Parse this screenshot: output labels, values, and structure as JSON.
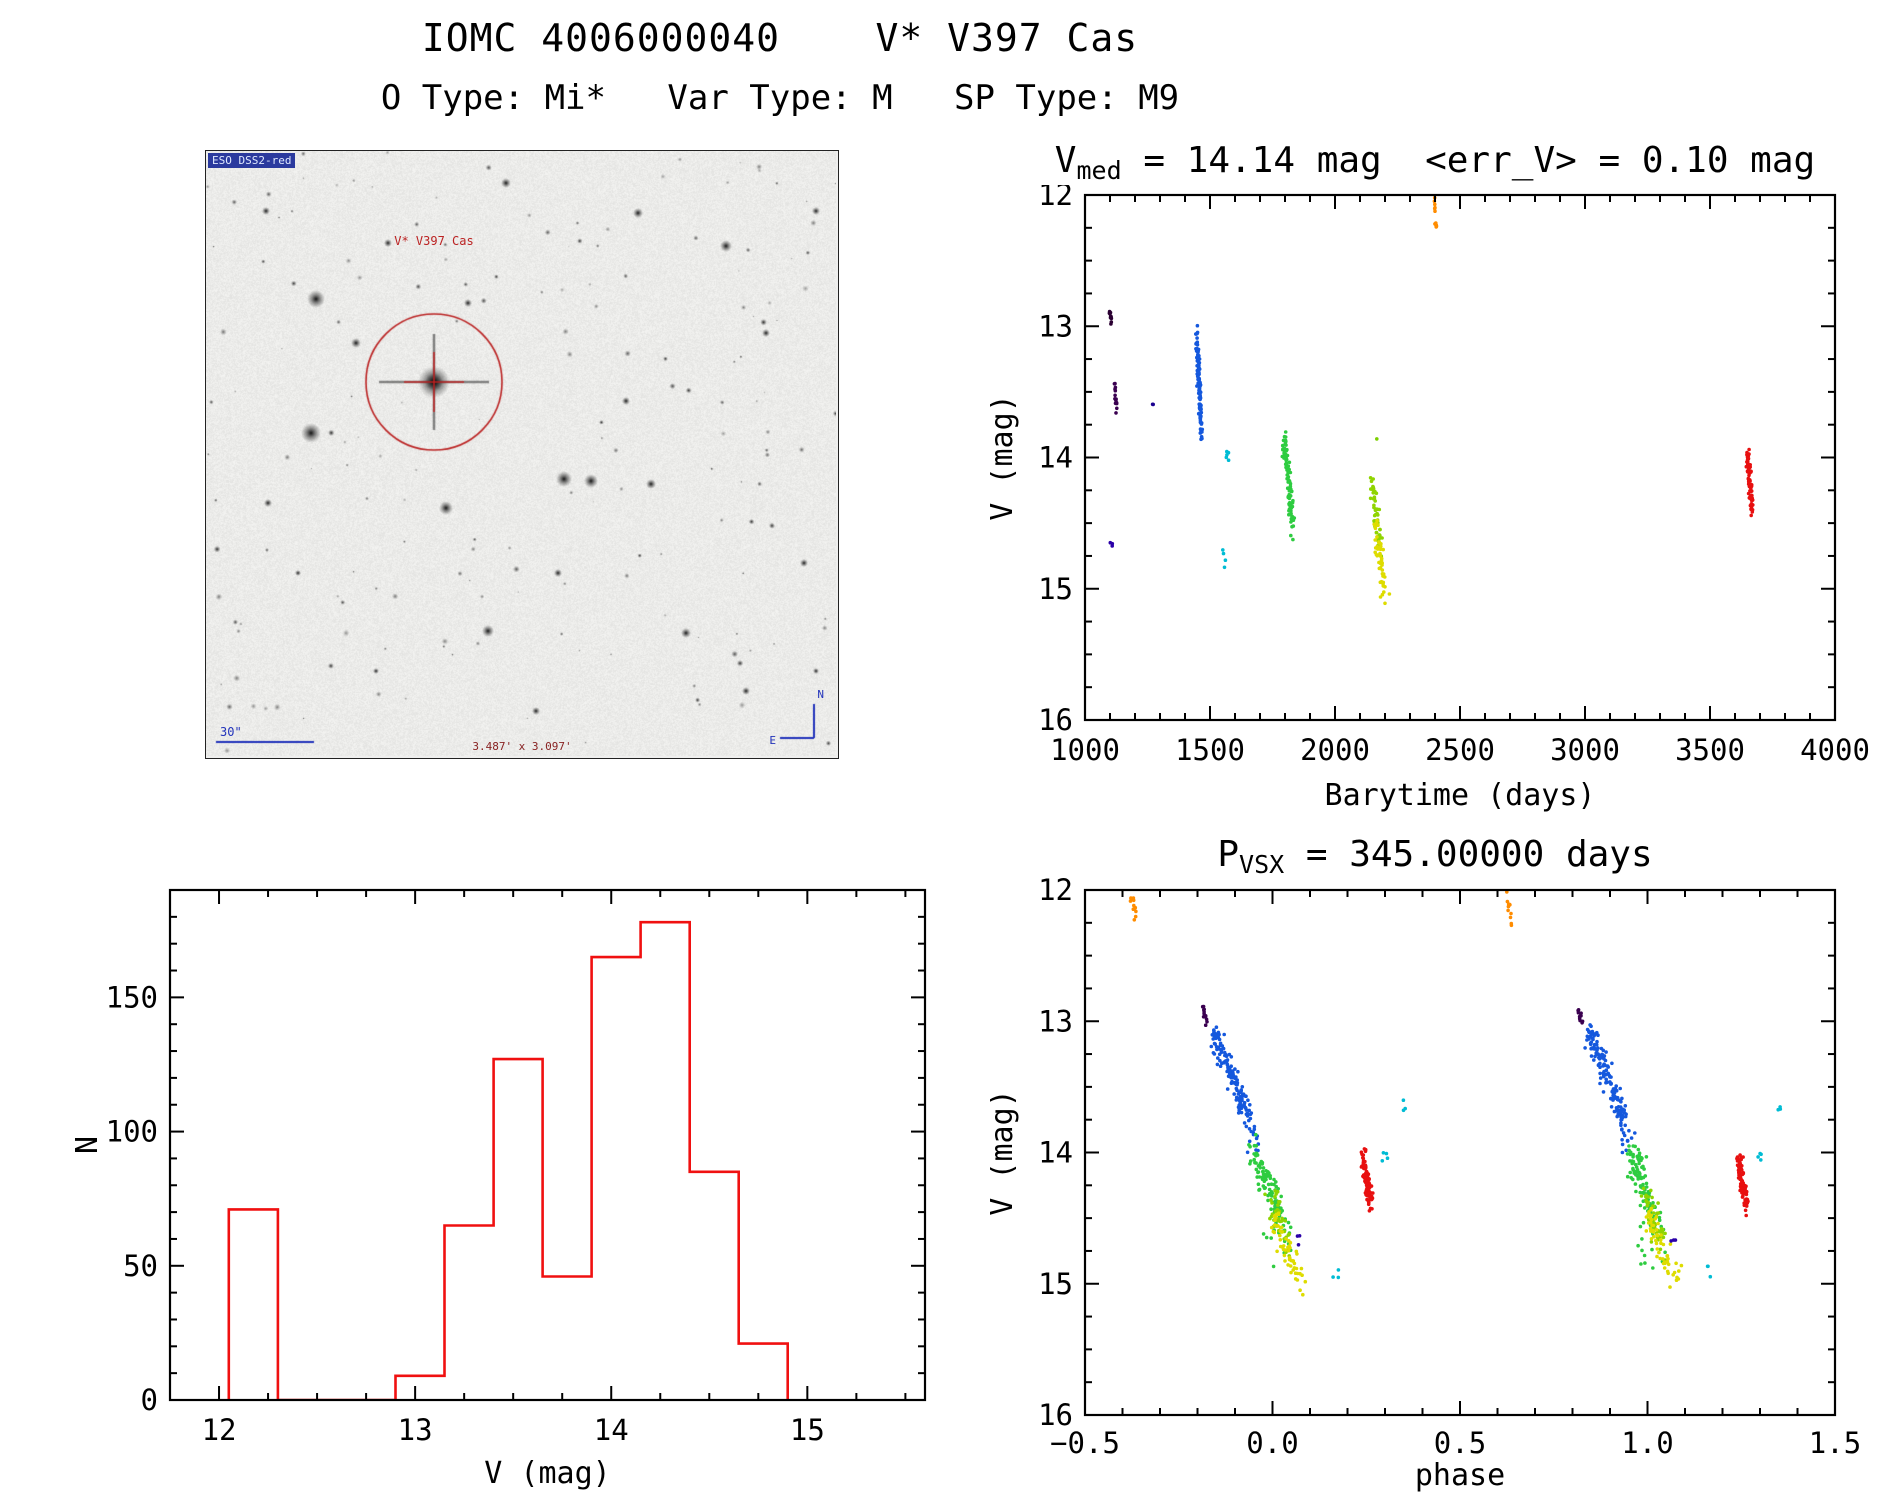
{
  "header": {
    "title": "IOMC 4006000040    V* V397 Cas",
    "subtitle": "O Type: Mi*   Var Type: M   SP Type: M9"
  },
  "finding_chart": {
    "survey_label": "ESO DSS2-red",
    "target_label": "V* V397 Cas",
    "scale_label": "30\"",
    "fov_label": "3.487' x 3.097'",
    "compass_north": "N",
    "compass_east": "E",
    "circle_color": "#bb2222"
  },
  "chart_data": [
    {
      "id": "lightcurve",
      "type": "scatter",
      "title_parts": [
        {
          "t": "V"
        },
        {
          "t": "med",
          "sub": true
        },
        {
          "t": " = 14.14 mag  <err_V> = 0.10 mag"
        }
      ],
      "xlabel": "Barytime (days)",
      "ylabel": "V (mag)",
      "xrange": [
        1000,
        4000
      ],
      "yrange": [
        12,
        16
      ],
      "y_inverted": true,
      "xtick_values": [
        1000,
        1500,
        2000,
        2500,
        3000,
        3500,
        4000
      ],
      "xtick_labels": [
        "1000",
        "1500",
        "2000",
        "2500",
        "3000",
        "3500",
        "4000"
      ],
      "ytick_values": [
        12,
        13,
        14,
        15,
        16
      ],
      "ytick_labels": [
        "12",
        "13",
        "14",
        "15",
        "16"
      ],
      "x_minor_step": 100,
      "y_minor_step": 0.25,
      "clusters": [
        {
          "color": "#2b0033",
          "n": 10,
          "mode": "streak",
          "x": [
            1100,
            1105
          ],
          "y": [
            12.88,
            13.0
          ],
          "jx": 2,
          "jy": 0.015
        },
        {
          "color": "#3a0050",
          "n": 14,
          "mode": "streak",
          "x": [
            1118,
            1126
          ],
          "y": [
            13.42,
            13.62
          ],
          "jx": 2,
          "jy": 0.02
        },
        {
          "color": "#1a0090",
          "n": 2,
          "mode": "blob",
          "x": [
            1265,
            1275
          ],
          "y": [
            13.58,
            13.65
          ]
        },
        {
          "color": "#2a00a8",
          "n": 3,
          "mode": "blob",
          "x": [
            1098,
            1112
          ],
          "y": [
            14.6,
            14.68
          ]
        },
        {
          "color": "#1558dd",
          "n": 120,
          "mode": "streak",
          "x": [
            1448,
            1463
          ],
          "y": [
            13.06,
            13.8
          ],
          "jx": 3,
          "jy": 0.04
        },
        {
          "color": "#1558dd",
          "n": 5,
          "mode": "blob",
          "x": [
            1452,
            1468
          ],
          "y": [
            13.8,
            13.9
          ]
        },
        {
          "color": "#00bcd4",
          "n": 5,
          "mode": "blob",
          "x": [
            1560,
            1590
          ],
          "y": [
            13.95,
            14.08
          ]
        },
        {
          "color": "#00bcd4",
          "n": 4,
          "mode": "blob",
          "x": [
            1550,
            1562
          ],
          "y": [
            14.7,
            14.95
          ]
        },
        {
          "color": "#2ecc40",
          "n": 95,
          "mode": "streak",
          "x": [
            1798,
            1828
          ],
          "y": [
            13.87,
            14.52
          ],
          "jx": 5,
          "jy": 0.05
        },
        {
          "color": "#7ccf00",
          "n": 1,
          "mode": "blob",
          "x": [
            2163,
            2168
          ],
          "y": [
            13.83,
            13.86
          ]
        },
        {
          "color": "#8fd400",
          "n": 55,
          "mode": "streak",
          "x": [
            2148,
            2178
          ],
          "y": [
            14.18,
            14.68
          ],
          "jx": 5,
          "jy": 0.05
        },
        {
          "color": "#dedc00",
          "n": 55,
          "mode": "streak",
          "x": [
            2160,
            2200
          ],
          "y": [
            14.5,
            15.02
          ],
          "jx": 6,
          "jy": 0.05
        },
        {
          "color": "#ff8c00",
          "n": 12,
          "mode": "streak",
          "x": [
            2398,
            2404
          ],
          "y": [
            12.05,
            12.26
          ],
          "jx": 1.5,
          "jy": 0.02
        },
        {
          "color": "#e81010",
          "n": 85,
          "mode": "streak",
          "x": [
            3650,
            3668
          ],
          "y": [
            13.97,
            14.38
          ],
          "jx": 4,
          "jy": 0.04
        }
      ]
    },
    {
      "id": "histogram",
      "type": "bar",
      "xlabel": "V (mag)",
      "ylabel": "N",
      "xrange": [
        11.75,
        15.6
      ],
      "yrange": [
        0,
        190
      ],
      "y_inverted": false,
      "xtick_values": [
        12,
        13,
        14,
        15
      ],
      "xtick_labels": [
        "12",
        "13",
        "14",
        "15"
      ],
      "ytick_values": [
        0,
        50,
        100,
        150
      ],
      "ytick_labels": [
        "0",
        "50",
        "100",
        "150"
      ],
      "x_minor_step": 0.25,
      "y_minor_step": 10,
      "bar_color": "#f01010",
      "bin_edges": [
        12.05,
        12.3,
        12.9,
        13.15,
        13.4,
        13.65,
        13.9,
        14.15,
        14.4,
        14.65,
        14.9
      ],
      "bin_counts": [
        71,
        0,
        9,
        65,
        127,
        46,
        165,
        178,
        85,
        21
      ]
    },
    {
      "id": "phase",
      "type": "scatter",
      "title_parts": [
        {
          "t": "P"
        },
        {
          "t": "VSX",
          "sub": true
        },
        {
          "t": " = 345.00000 days"
        }
      ],
      "xlabel": "phase",
      "ylabel": "V (mag)",
      "xrange": [
        -0.5,
        1.5
      ],
      "yrange": [
        12,
        16
      ],
      "y_inverted": true,
      "xtick_values": [
        -0.5,
        0,
        0.5,
        1,
        1.5
      ],
      "xtick_labels": [
        "−0.5",
        "0.0",
        "0.5",
        "1.0",
        "1.5"
      ],
      "ytick_values": [
        12,
        13,
        14,
        15,
        16
      ],
      "ytick_labels": [
        "12",
        "13",
        "14",
        "15",
        "16"
      ],
      "x_minor_step": 0.1,
      "y_minor_step": 0.25,
      "duplicate_offset": 1.0,
      "clusters": [
        {
          "color": "#ff8c00",
          "n": 12,
          "mode": "streak",
          "x": [
            -0.374,
            -0.366
          ],
          "y": [
            12.05,
            12.26
          ],
          "jx": 0.004,
          "jy": 0.02
        },
        {
          "color": "#3a0050",
          "n": 12,
          "mode": "streak",
          "x": [
            -0.186,
            -0.176
          ],
          "y": [
            12.88,
            13.0
          ],
          "jx": 0.002,
          "jy": 0.015
        },
        {
          "color": "#1558dd",
          "n": 150,
          "mode": "streak",
          "x": [
            -0.158,
            -0.06
          ],
          "y": [
            13.05,
            13.78
          ],
          "jx": 0.007,
          "jy": 0.05
        },
        {
          "color": "#1558dd",
          "n": 10,
          "mode": "blob",
          "x": [
            -0.07,
            -0.03
          ],
          "y": [
            13.78,
            14.0
          ]
        },
        {
          "color": "#2ecc40",
          "n": 110,
          "mode": "streak",
          "x": [
            -0.05,
            0.025
          ],
          "y": [
            13.97,
            14.55
          ],
          "jx": 0.009,
          "jy": 0.06
        },
        {
          "color": "#2ecc40",
          "n": 14,
          "mode": "blob",
          "x": [
            -0.025,
            0.05
          ],
          "y": [
            14.55,
            14.9
          ]
        },
        {
          "color": "#8fd400",
          "n": 40,
          "mode": "streak",
          "x": [
            -0.005,
            0.045
          ],
          "y": [
            14.3,
            14.75
          ],
          "jx": 0.008,
          "jy": 0.05
        },
        {
          "color": "#dedc00",
          "n": 60,
          "mode": "streak",
          "x": [
            0.0,
            0.075
          ],
          "y": [
            14.45,
            15.0
          ],
          "jx": 0.008,
          "jy": 0.05
        },
        {
          "color": "#2a00a8",
          "n": 3,
          "mode": "blob",
          "x": [
            0.062,
            0.075
          ],
          "y": [
            14.6,
            14.72
          ]
        },
        {
          "color": "#00bcd4",
          "n": 3,
          "mode": "blob",
          "x": [
            0.16,
            0.178
          ],
          "y": [
            14.84,
            14.96
          ]
        },
        {
          "color": "#00bcd4",
          "n": 4,
          "mode": "blob",
          "x": [
            0.292,
            0.312
          ],
          "y": [
            13.95,
            14.07
          ]
        },
        {
          "color": "#00bcd4",
          "n": 3,
          "mode": "blob",
          "x": [
            0.344,
            0.356
          ],
          "y": [
            13.6,
            13.68
          ]
        },
        {
          "color": "#e81010",
          "n": 90,
          "mode": "streak",
          "x": [
            0.243,
            0.262
          ],
          "y": [
            14.04,
            14.38
          ],
          "jx": 0.004,
          "jy": 0.04
        }
      ]
    }
  ]
}
